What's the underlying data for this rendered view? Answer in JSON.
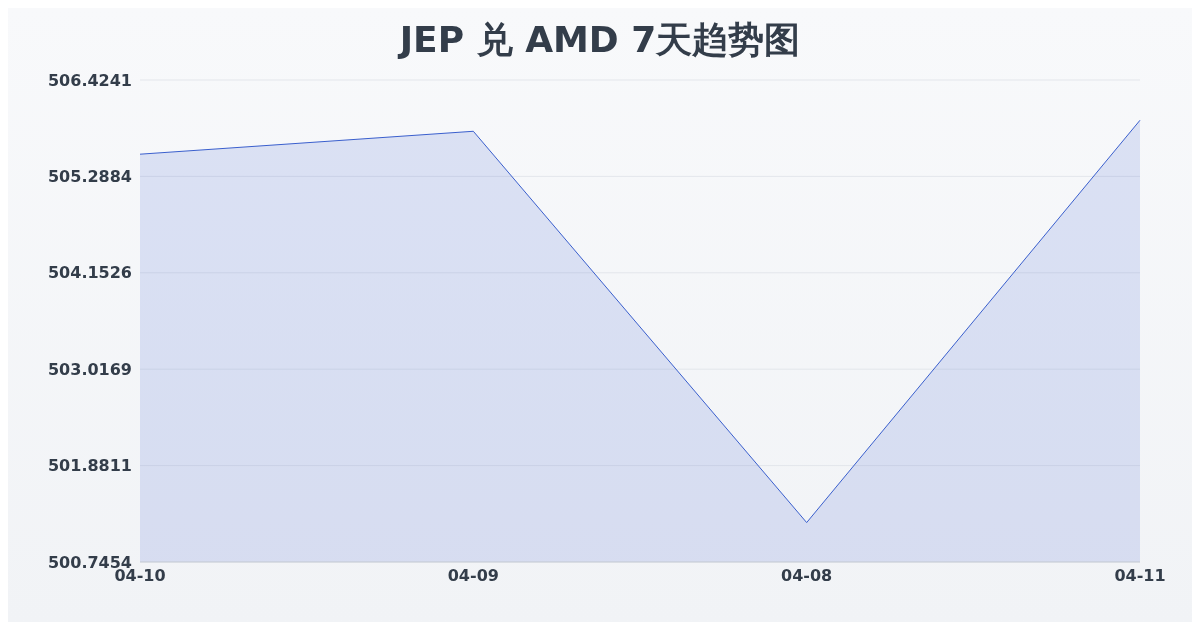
{
  "chart_data": {
    "type": "area",
    "title": "JEP 兑 AMD 7天趋势图",
    "categories": [
      "04-10",
      "04-09",
      "04-08",
      "04-11"
    ],
    "series": [
      {
        "color": "#3a5fcd",
        "values": [
          505.55,
          505.82,
          501.21,
          505.95
        ]
      }
    ],
    "ylim": [
      500.7454,
      506.4241
    ],
    "yticks": [
      500.7454,
      501.8811,
      503.0169,
      504.1526,
      505.2884,
      506.4241
    ],
    "grid": "y",
    "legend": false,
    "marker": "none"
  }
}
